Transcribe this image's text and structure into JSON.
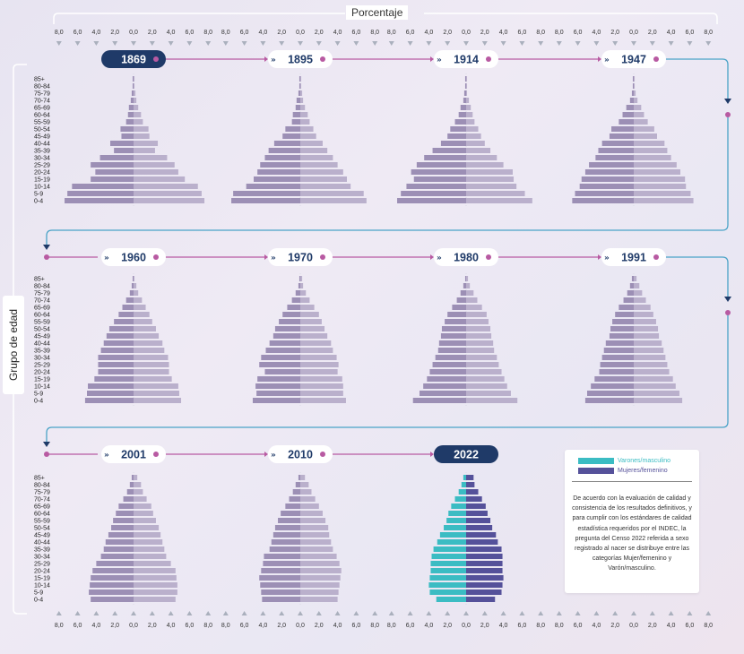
{
  "chart": {
    "x_axis_title": "Porcentaje",
    "y_axis_title": "Grupo de edad"
  },
  "legend": {
    "male_label": "Varones/masculino",
    "female_label": "Mujeres/femenino",
    "note": "De acuerdo con la evaluación de calidad y consistencia de los resultados definitivos, y para cumplir con los estándares de calidad estadística requeridos por el INDEC, la pregunta del Censo 2022 referida a sexo registrado al nacer se distribuye entre las categorías Mujer/femenino y Varón/masculino."
  },
  "colors": {
    "male_historic": "#9c8fb5",
    "female_historic": "#bab0cc",
    "male_2022": "#3bbcc3",
    "female_2022": "#55519a",
    "connector": "#b85aa2",
    "connector_end": "#4aa3c7",
    "year_badge_active": "#1f3a68",
    "tick": "#aab0bd"
  },
  "chart_data": {
    "type": "population-pyramid",
    "x_axis_tick_labels": [
      "8,0",
      "6,0",
      "4,0",
      "2,0",
      "0,0",
      "2,0",
      "4,0",
      "6,0",
      "8,0"
    ],
    "xlim": [
      -8,
      8
    ],
    "age_groups": [
      "85+",
      "80-84",
      "75-79",
      "70-74",
      "65-69",
      "60-64",
      "55-59",
      "50-54",
      "45-49",
      "40-44",
      "35-39",
      "30-34",
      "25-29",
      "20-24",
      "15-19",
      "10-14",
      "5-9",
      "0-4"
    ],
    "censuses": [
      {
        "year": "1869",
        "male": [
          0.1,
          0.1,
          0.2,
          0.3,
          0.5,
          0.6,
          0.8,
          1.4,
          1.3,
          2.5,
          2.1,
          3.6,
          4.6,
          4.1,
          4.6,
          6.6,
          7.1,
          7.4
        ],
        "female": [
          0.1,
          0.1,
          0.2,
          0.3,
          0.5,
          0.8,
          1.0,
          1.6,
          1.7,
          2.6,
          2.3,
          3.6,
          4.4,
          4.8,
          5.5,
          6.9,
          7.3,
          7.6
        ]
      },
      {
        "year": "1895",
        "male": [
          0.1,
          0.1,
          0.2,
          0.4,
          0.5,
          0.8,
          0.9,
          1.6,
          1.9,
          2.8,
          3.4,
          3.8,
          4.3,
          4.6,
          5.0,
          5.8,
          7.2,
          7.4
        ],
        "female": [
          0.1,
          0.1,
          0.2,
          0.3,
          0.5,
          0.8,
          1.0,
          1.4,
          1.7,
          2.4,
          2.9,
          3.5,
          4.0,
          4.6,
          5.0,
          5.4,
          6.8,
          7.1
        ]
      },
      {
        "year": "1914",
        "male": [
          0.1,
          0.1,
          0.2,
          0.3,
          0.6,
          0.8,
          1.2,
          1.7,
          2.0,
          2.7,
          3.6,
          4.5,
          5.3,
          5.9,
          5.6,
          6.4,
          7.0,
          7.4
        ],
        "female": [
          0.1,
          0.1,
          0.1,
          0.3,
          0.5,
          0.7,
          0.9,
          1.3,
          1.6,
          2.0,
          2.6,
          3.3,
          4.0,
          5.0,
          5.1,
          5.4,
          6.3,
          7.1
        ]
      },
      {
        "year": "1947",
        "male": [
          0.1,
          0.1,
          0.2,
          0.4,
          0.8,
          1.2,
          1.6,
          2.4,
          2.6,
          3.4,
          3.8,
          4.1,
          4.8,
          5.2,
          5.6,
          5.8,
          6.3,
          6.6
        ],
        "female": [
          0.1,
          0.1,
          0.2,
          0.4,
          0.8,
          1.1,
          1.5,
          2.2,
          2.5,
          3.3,
          3.6,
          4.0,
          4.6,
          5.0,
          5.5,
          5.6,
          6.1,
          6.4
        ]
      },
      {
        "year": "1960",
        "male": [
          0.1,
          0.2,
          0.4,
          0.8,
          1.2,
          1.6,
          2.1,
          2.6,
          2.9,
          3.2,
          3.5,
          3.8,
          3.8,
          3.8,
          4.2,
          4.9,
          5.0,
          5.2
        ],
        "female": [
          0.1,
          0.3,
          0.5,
          0.9,
          1.3,
          1.7,
          2.0,
          2.4,
          2.7,
          3.1,
          3.3,
          3.7,
          3.8,
          3.8,
          4.1,
          4.8,
          4.9,
          5.1
        ]
      },
      {
        "year": "1970",
        "male": [
          0.1,
          0.2,
          0.5,
          0.9,
          1.4,
          1.9,
          2.3,
          2.7,
          2.9,
          3.3,
          3.7,
          4.2,
          4.4,
          3.8,
          4.6,
          4.8,
          4.7,
          5.1
        ],
        "female": [
          0.2,
          0.3,
          0.6,
          1.0,
          1.5,
          2.0,
          2.3,
          2.6,
          2.9,
          3.3,
          3.5,
          3.9,
          4.1,
          4.0,
          4.5,
          4.6,
          4.6,
          4.9
        ]
      },
      {
        "year": "1980",
        "male": [
          0.1,
          0.3,
          0.6,
          1.0,
          1.5,
          2.0,
          2.3,
          2.6,
          2.7,
          2.9,
          3.0,
          3.3,
          3.6,
          3.9,
          4.2,
          4.6,
          5.0,
          5.7
        ],
        "female": [
          0.2,
          0.4,
          0.8,
          1.2,
          1.7,
          2.2,
          2.4,
          2.6,
          2.7,
          2.9,
          3.0,
          3.3,
          3.5,
          3.8,
          4.1,
          4.4,
          4.8,
          5.5
        ]
      },
      {
        "year": "1991",
        "male": [
          0.2,
          0.4,
          0.7,
          1.1,
          1.6,
          2.0,
          2.3,
          2.5,
          2.6,
          3.0,
          3.2,
          3.4,
          3.6,
          3.7,
          4.2,
          4.6,
          5.0,
          5.2
        ],
        "female": [
          0.3,
          0.6,
          0.9,
          1.3,
          1.8,
          2.1,
          2.4,
          2.6,
          2.7,
          3.0,
          3.2,
          3.4,
          3.6,
          3.8,
          4.2,
          4.5,
          4.9,
          5.2
        ]
      },
      {
        "year": "2001",
        "male": [
          0.2,
          0.4,
          0.7,
          1.1,
          1.6,
          1.9,
          2.2,
          2.4,
          2.7,
          3.0,
          3.2,
          3.5,
          4.0,
          4.4,
          4.6,
          4.7,
          4.8,
          4.6
        ],
        "female": [
          0.4,
          0.8,
          1.0,
          1.4,
          1.9,
          2.1,
          2.4,
          2.7,
          2.9,
          3.1,
          3.3,
          3.5,
          4.0,
          4.5,
          4.6,
          4.7,
          4.7,
          4.5
        ]
      },
      {
        "year": "2010",
        "male": [
          0.2,
          0.5,
          0.8,
          1.2,
          1.6,
          2.1,
          2.4,
          2.7,
          2.9,
          3.1,
          3.3,
          3.9,
          4.0,
          4.2,
          4.4,
          4.3,
          4.2,
          4.1
        ],
        "female": [
          0.5,
          0.9,
          1.2,
          1.6,
          2.0,
          2.4,
          2.7,
          3.0,
          3.1,
          3.3,
          3.5,
          3.9,
          4.2,
          4.4,
          4.3,
          4.2,
          4.1,
          4.0
        ]
      },
      {
        "year": "2022",
        "male": [
          0.3,
          0.5,
          0.8,
          1.2,
          1.6,
          1.9,
          2.1,
          2.4,
          2.8,
          3.1,
          3.5,
          3.7,
          3.8,
          3.8,
          3.9,
          4.0,
          3.9,
          3.2
        ],
        "female": [
          0.8,
          0.9,
          1.3,
          1.7,
          2.1,
          2.3,
          2.6,
          2.8,
          3.2,
          3.4,
          3.8,
          3.9,
          3.9,
          3.9,
          4.0,
          3.9,
          3.8,
          3.1
        ]
      }
    ]
  }
}
